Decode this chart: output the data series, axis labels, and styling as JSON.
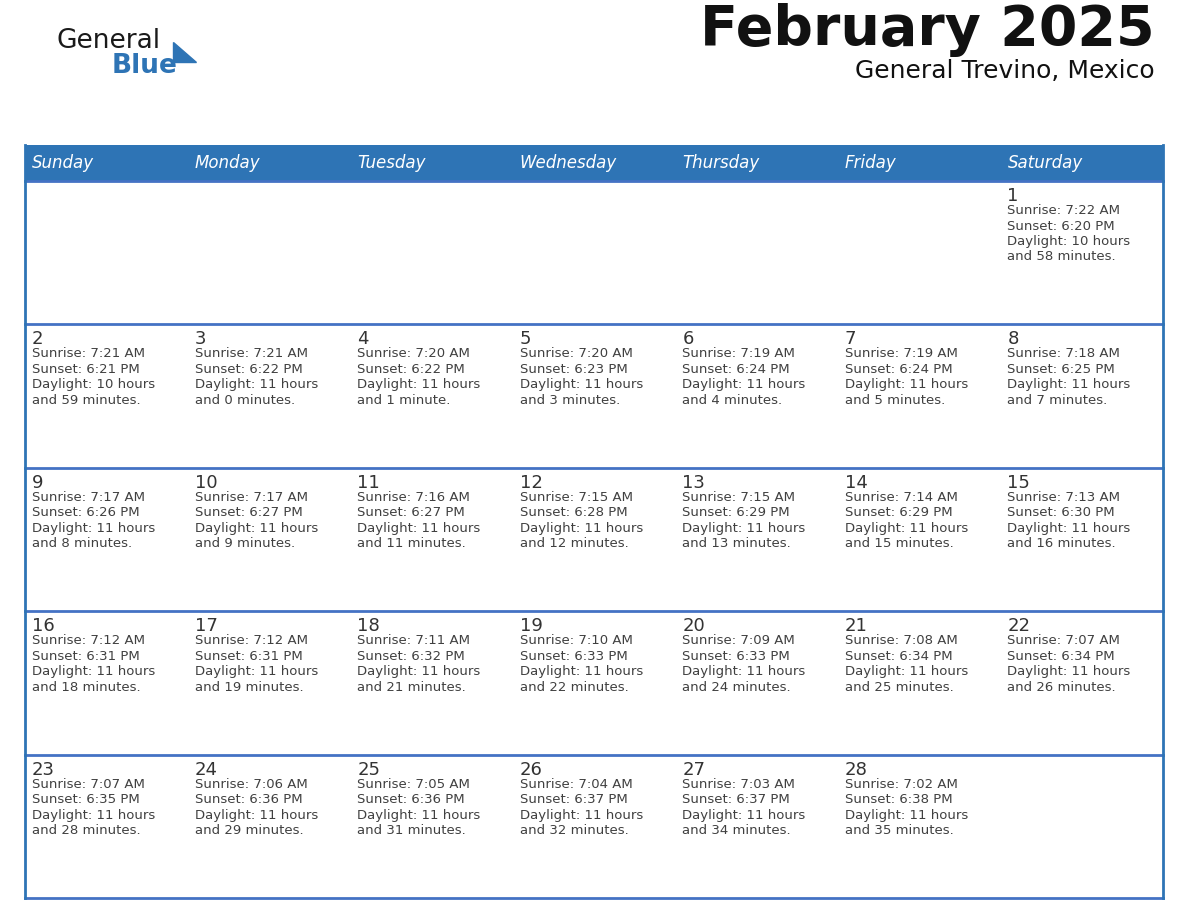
{
  "title": "February 2025",
  "subtitle": "General Trevino, Mexico",
  "days_of_week": [
    "Sunday",
    "Monday",
    "Tuesday",
    "Wednesday",
    "Thursday",
    "Friday",
    "Saturday"
  ],
  "header_bg": "#2E74B5",
  "header_text": "#FFFFFF",
  "cell_bg": "#FFFFFF",
  "row_sep_color": "#4472C4",
  "border_color": "#2E74B5",
  "text_color": "#404040",
  "day_num_color": "#333333",
  "calendar_data": [
    [
      null,
      null,
      null,
      null,
      null,
      null,
      {
        "day": 1,
        "sunrise": "7:22 AM",
        "sunset": "6:20 PM",
        "daylight": "10 hours and 58 minutes."
      }
    ],
    [
      {
        "day": 2,
        "sunrise": "7:21 AM",
        "sunset": "6:21 PM",
        "daylight": "10 hours and 59 minutes."
      },
      {
        "day": 3,
        "sunrise": "7:21 AM",
        "sunset": "6:22 PM",
        "daylight": "11 hours and 0 minutes."
      },
      {
        "day": 4,
        "sunrise": "7:20 AM",
        "sunset": "6:22 PM",
        "daylight": "11 hours and 1 minute."
      },
      {
        "day": 5,
        "sunrise": "7:20 AM",
        "sunset": "6:23 PM",
        "daylight": "11 hours and 3 minutes."
      },
      {
        "day": 6,
        "sunrise": "7:19 AM",
        "sunset": "6:24 PM",
        "daylight": "11 hours and 4 minutes."
      },
      {
        "day": 7,
        "sunrise": "7:19 AM",
        "sunset": "6:24 PM",
        "daylight": "11 hours and 5 minutes."
      },
      {
        "day": 8,
        "sunrise": "7:18 AM",
        "sunset": "6:25 PM",
        "daylight": "11 hours and 7 minutes."
      }
    ],
    [
      {
        "day": 9,
        "sunrise": "7:17 AM",
        "sunset": "6:26 PM",
        "daylight": "11 hours and 8 minutes."
      },
      {
        "day": 10,
        "sunrise": "7:17 AM",
        "sunset": "6:27 PM",
        "daylight": "11 hours and 9 minutes."
      },
      {
        "day": 11,
        "sunrise": "7:16 AM",
        "sunset": "6:27 PM",
        "daylight": "11 hours and 11 minutes."
      },
      {
        "day": 12,
        "sunrise": "7:15 AM",
        "sunset": "6:28 PM",
        "daylight": "11 hours and 12 minutes."
      },
      {
        "day": 13,
        "sunrise": "7:15 AM",
        "sunset": "6:29 PM",
        "daylight": "11 hours and 13 minutes."
      },
      {
        "day": 14,
        "sunrise": "7:14 AM",
        "sunset": "6:29 PM",
        "daylight": "11 hours and 15 minutes."
      },
      {
        "day": 15,
        "sunrise": "7:13 AM",
        "sunset": "6:30 PM",
        "daylight": "11 hours and 16 minutes."
      }
    ],
    [
      {
        "day": 16,
        "sunrise": "7:12 AM",
        "sunset": "6:31 PM",
        "daylight": "11 hours and 18 minutes."
      },
      {
        "day": 17,
        "sunrise": "7:12 AM",
        "sunset": "6:31 PM",
        "daylight": "11 hours and 19 minutes."
      },
      {
        "day": 18,
        "sunrise": "7:11 AM",
        "sunset": "6:32 PM",
        "daylight": "11 hours and 21 minutes."
      },
      {
        "day": 19,
        "sunrise": "7:10 AM",
        "sunset": "6:33 PM",
        "daylight": "11 hours and 22 minutes."
      },
      {
        "day": 20,
        "sunrise": "7:09 AM",
        "sunset": "6:33 PM",
        "daylight": "11 hours and 24 minutes."
      },
      {
        "day": 21,
        "sunrise": "7:08 AM",
        "sunset": "6:34 PM",
        "daylight": "11 hours and 25 minutes."
      },
      {
        "day": 22,
        "sunrise": "7:07 AM",
        "sunset": "6:34 PM",
        "daylight": "11 hours and 26 minutes."
      }
    ],
    [
      {
        "day": 23,
        "sunrise": "7:07 AM",
        "sunset": "6:35 PM",
        "daylight": "11 hours and 28 minutes."
      },
      {
        "day": 24,
        "sunrise": "7:06 AM",
        "sunset": "6:36 PM",
        "daylight": "11 hours and 29 minutes."
      },
      {
        "day": 25,
        "sunrise": "7:05 AM",
        "sunset": "6:36 PM",
        "daylight": "11 hours and 31 minutes."
      },
      {
        "day": 26,
        "sunrise": "7:04 AM",
        "sunset": "6:37 PM",
        "daylight": "11 hours and 32 minutes."
      },
      {
        "day": 27,
        "sunrise": "7:03 AM",
        "sunset": "6:37 PM",
        "daylight": "11 hours and 34 minutes."
      },
      {
        "day": 28,
        "sunrise": "7:02 AM",
        "sunset": "6:38 PM",
        "daylight": "11 hours and 35 minutes."
      },
      null
    ]
  ],
  "logo_general_color": "#1a1a1a",
  "logo_blue_color": "#2E74B5",
  "logo_triangle_color": "#2E74B5",
  "title_fontsize": 40,
  "subtitle_fontsize": 18,
  "header_fontsize": 12,
  "day_num_fontsize": 13,
  "cell_text_fontsize": 9.5
}
